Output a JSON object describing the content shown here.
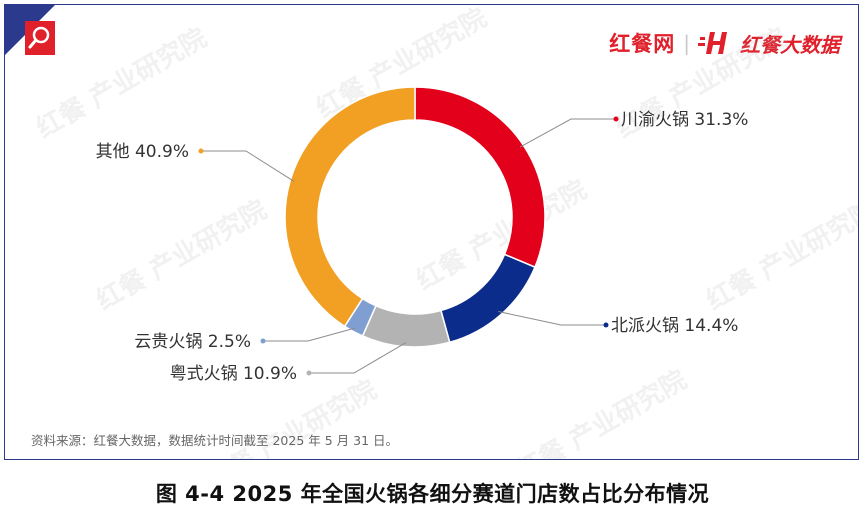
{
  "brand": {
    "name_left": "红餐网",
    "name_right": "红餐大数据",
    "watermark": "红餐 产业研究院"
  },
  "source_note": "资料来源：红餐大数据，数据统计时间截至 2025 年 5 月 31 日。",
  "caption": "图 4-4    2025 年全国火锅各细分赛道门店数占比分布情况",
  "colors": {
    "frame": "#2b3a8c",
    "brand_red": "#e0202b"
  },
  "chart_data": {
    "type": "pie",
    "variant": "donut",
    "title": "",
    "slices": [
      {
        "name": "川渝火锅",
        "value": 31.3,
        "label": "31.3%",
        "color": "#e2001a"
      },
      {
        "name": "北派火锅",
        "value": 14.4,
        "label": "14.4%",
        "color": "#0c2c8c"
      },
      {
        "name": "粤式火锅",
        "value": 10.9,
        "label": "10.9%",
        "color": "#b3b3b3"
      },
      {
        "name": "云贵火锅",
        "value": 2.5,
        "label": "2.5%",
        "color": "#7f9fd3"
      },
      {
        "name": "其他",
        "value": 40.9,
        "label": "40.9%",
        "color": "#f2a023"
      }
    ],
    "start": "12 o'clock",
    "direction": "clockwise"
  }
}
